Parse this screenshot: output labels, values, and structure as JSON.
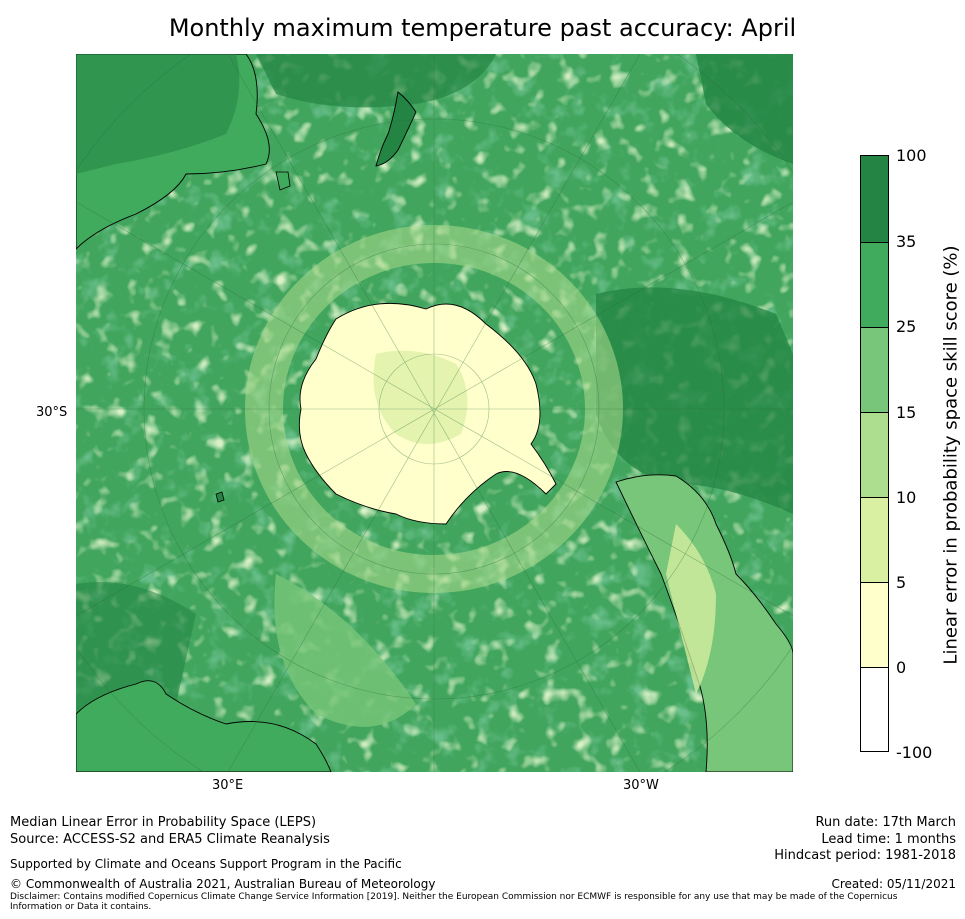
{
  "title": "Monthly maximum temperature past accuracy: April",
  "map": {
    "projection": "South polar stereographic",
    "labels": {
      "lat": "30°S",
      "lon_east": "30°E",
      "lon_west": "30°W"
    },
    "features": [
      "Antarctica",
      "Australia",
      "New Zealand",
      "South America",
      "Southern Africa",
      "Madagascar"
    ]
  },
  "colorbar": {
    "label": "Linear error in probability space skill score (%)",
    "ticks": [
      "100",
      "35",
      "25",
      "15",
      "10",
      "5",
      "0",
      "-100"
    ],
    "bands": [
      {
        "range": "35 to 100",
        "color": "#238443"
      },
      {
        "range": "25 to 35",
        "color": "#41ab5d"
      },
      {
        "range": "15 to 25",
        "color": "#78c679"
      },
      {
        "range": "10 to 15",
        "color": "#addd8e"
      },
      {
        "range": "5 to 10",
        "color": "#d9f0a3"
      },
      {
        "range": "0 to 5",
        "color": "#ffffcc"
      },
      {
        "range": "-100 to 0",
        "color": "#ffffff"
      }
    ]
  },
  "footer": {
    "line1": "Median Linear Error in Probability Space (LEPS)",
    "line2": "Source: ACCESS-S2 and ERA5 Climate Reanalysis",
    "support": "Supported by Climate and Oceans Support Program in the Pacific",
    "copyright": "© Commonwealth of Australia 2021, Australian Bureau of Meteorology",
    "disclaimer1": "Disclaimer: Contains modified Copernicus Climate Change Service Information [2019]. Neither the European Commission nor ECMWF is responsible for any use that may be made of the Copernicus",
    "disclaimer2": "Information or Data it contains.",
    "run_date": "Run date: 17th March",
    "lead_time": "Lead time: 1 months",
    "hindcast": "Hindcast period: 1981-2018",
    "created": "Created: 05/11/2021"
  }
}
